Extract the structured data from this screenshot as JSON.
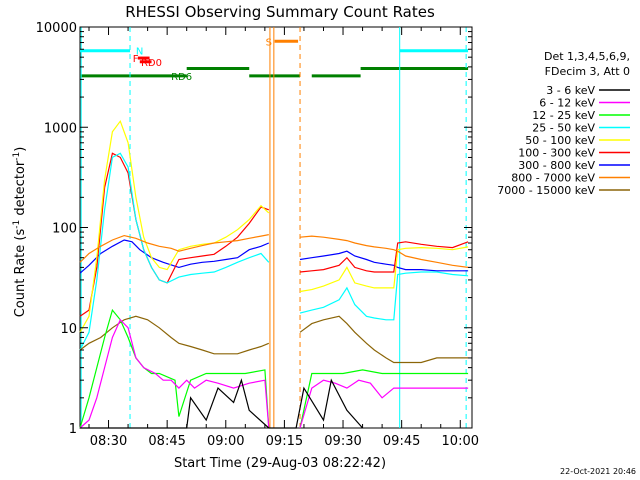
{
  "chart_data": {
    "type": "line",
    "title": "RHESSI Observing Summary Count Rates",
    "xlabel_prefix": "Start Time",
    "start_time": "29-Aug-03 08:22:42",
    "ylabel_main": "Count Rate (s",
    "ylabel_sup1": "-1",
    "ylabel_mid": " detector",
    "ylabel_sup2": "-1",
    "ylabel_end": ")",
    "x_range_min": [
      502.7,
      603
    ],
    "y_scale": "log",
    "ylim": [
      1,
      10000
    ],
    "x_ticks": [
      {
        "label": "08:30",
        "t": 510
      },
      {
        "label": "08:45",
        "t": 525
      },
      {
        "label": "09:00",
        "t": 540
      },
      {
        "label": "09:15",
        "t": 555
      },
      {
        "label": "09:30",
        "t": 570
      },
      {
        "label": "09:45",
        "t": 585
      },
      {
        "label": "10:00",
        "t": 600
      }
    ],
    "y_ticks": [
      {
        "label": "1",
        "v": 1
      },
      {
        "label": "10",
        "v": 10
      },
      {
        "label": "100",
        "v": 100
      },
      {
        "label": "1000",
        "v": 1000
      },
      {
        "label": "10000",
        "v": 10000
      }
    ],
    "legend": {
      "header1": "Det 1,3,4,5,6,9,",
      "header2": "FDecim 3, Att 0"
    },
    "series": [
      {
        "name": "3 - 6 keV",
        "color": "#000000",
        "t": [
          502.7,
          530,
          531,
          535,
          538,
          542,
          544,
          546,
          551,
          558,
          560,
          565,
          567,
          571,
          575
        ],
        "v": [
          1,
          1,
          2,
          1.2,
          2.5,
          1.8,
          3,
          1.5,
          1,
          1,
          2.5,
          1.2,
          3,
          1.5,
          1
        ]
      },
      {
        "name": "6 - 12 keV",
        "color": "#ff00ff",
        "t": [
          502.7,
          505,
          507,
          509,
          511,
          513,
          515,
          517,
          519,
          522,
          524,
          526,
          528,
          530,
          532,
          535,
          538,
          542,
          546,
          550,
          551,
          559,
          562,
          565,
          568,
          571,
          574,
          577,
          580,
          583,
          586,
          590,
          594,
          598,
          602
        ],
        "v": [
          1,
          1.2,
          2,
          4,
          8,
          12,
          10,
          5,
          4,
          3.5,
          3,
          3,
          2.5,
          3,
          2.5,
          3,
          2.8,
          2.5,
          2.8,
          3,
          1,
          1,
          2.5,
          3,
          2.8,
          2.5,
          3,
          2.8,
          2,
          2.5,
          2.5,
          2.5,
          2.5,
          2.5,
          2.5
        ]
      },
      {
        "name": "12 - 25 keV",
        "color": "#00ff00",
        "t": [
          502.7,
          505,
          507,
          509,
          511,
          513,
          515,
          517,
          519,
          521,
          523,
          527,
          528,
          531,
          535,
          540,
          545,
          550,
          551,
          559,
          562,
          565,
          570,
          575,
          580,
          585,
          590,
          595,
          602
        ],
        "v": [
          1,
          2,
          4,
          8,
          15,
          12,
          8,
          5,
          4,
          3.5,
          3.5,
          3,
          1.3,
          3,
          3.5,
          3.5,
          3.5,
          3.8,
          1,
          1,
          3.5,
          3.5,
          3.5,
          3.8,
          3.5,
          3.5,
          3.5,
          3.5,
          3.5
        ]
      },
      {
        "name": "25 - 50 keV",
        "color": "#00ffff",
        "t": [
          502.7,
          505,
          507,
          509,
          511,
          513,
          515,
          517,
          519,
          521,
          523,
          525,
          528,
          531,
          534,
          537,
          540,
          543,
          546,
          549,
          551,
          559,
          562,
          565,
          569,
          571,
          573,
          576,
          578,
          581,
          583,
          584,
          586,
          590,
          594,
          598,
          602
        ],
        "v": [
          6,
          9,
          30,
          150,
          500,
          550,
          400,
          120,
          60,
          40,
          30,
          28,
          32,
          34,
          35,
          36,
          40,
          45,
          50,
          55,
          45,
          14,
          15,
          16,
          19,
          25,
          17,
          13,
          12.5,
          12,
          12,
          34,
          35,
          36,
          36,
          34,
          33
        ]
      },
      {
        "name": "50 - 100 keV",
        "color": "#ffff00",
        "t": [
          502.7,
          505,
          507,
          509,
          511,
          513,
          515,
          517,
          519,
          521,
          523,
          525,
          528,
          531,
          534,
          537,
          540,
          543,
          546,
          549,
          551,
          559,
          562,
          565,
          569,
          571,
          573,
          576,
          578,
          581,
          583,
          584,
          586,
          590,
          594,
          598,
          602
        ],
        "v": [
          9,
          13,
          50,
          300,
          900,
          1150,
          700,
          200,
          80,
          50,
          40,
          38,
          60,
          65,
          68,
          70,
          80,
          95,
          120,
          165,
          140,
          23,
          24,
          26,
          30,
          40,
          28,
          26,
          25,
          25,
          25,
          60,
          62,
          63,
          62,
          60,
          64
        ]
      },
      {
        "name": "100 - 300 keV",
        "color": "#ff0000",
        "t": [
          502.7,
          505,
          507,
          509,
          511,
          513,
          515,
          517,
          519,
          521,
          523,
          525,
          528,
          531,
          534,
          537,
          540,
          543,
          546,
          549,
          551,
          559,
          562,
          565,
          569,
          571,
          573,
          576,
          578,
          581,
          583,
          584,
          586,
          590,
          594,
          598,
          602
        ],
        "v": [
          13,
          15,
          40,
          250,
          550,
          500,
          350,
          120,
          60,
          40,
          30,
          28,
          48,
          50,
          52,
          54,
          65,
          80,
          110,
          160,
          150,
          36,
          37,
          38,
          42,
          50,
          40,
          37,
          36,
          36,
          36,
          70,
          72,
          68,
          65,
          63,
          72
        ]
      },
      {
        "name": "300 - 800 keV",
        "color": "#0000ff",
        "t": [
          502.7,
          505,
          508,
          511,
          514,
          516,
          518,
          521,
          524,
          528,
          531,
          534,
          537,
          540,
          543,
          546,
          549,
          551,
          559,
          562,
          565,
          569,
          571,
          573,
          576,
          578,
          581,
          583,
          584,
          586,
          590,
          594,
          598,
          602
        ],
        "v": [
          35,
          42,
          55,
          65,
          75,
          72,
          60,
          50,
          45,
          40,
          43,
          45,
          46,
          48,
          50,
          60,
          65,
          70,
          48,
          50,
          52,
          55,
          58,
          52,
          48,
          45,
          43,
          42,
          40,
          38,
          38,
          37,
          37,
          37
        ]
      },
      {
        "name": "800 - 7000 keV",
        "color": "#ff8000",
        "t": [
          502.7,
          505,
          508,
          511,
          514,
          517,
          520,
          523,
          526,
          528,
          531,
          534,
          537,
          540,
          543,
          546,
          549,
          551,
          559,
          562,
          565,
          569,
          571,
          573,
          576,
          578,
          581,
          583,
          584,
          586,
          590,
          594,
          598,
          602
        ],
        "v": [
          45,
          55,
          65,
          75,
          83,
          78,
          70,
          65,
          62,
          58,
          62,
          66,
          70,
          72,
          74,
          78,
          82,
          85,
          80,
          82,
          80,
          76,
          74,
          70,
          66,
          64,
          62,
          60,
          58,
          52,
          48,
          45,
          42,
          40
        ]
      },
      {
        "name": "7000 - 15000 keV",
        "color": "#8b6508",
        "t": [
          502.7,
          505,
          508,
          511,
          514,
          517,
          520,
          523,
          526,
          528,
          531,
          534,
          537,
          540,
          543,
          546,
          549,
          551,
          559,
          562,
          565,
          569,
          571,
          573,
          576,
          578,
          581,
          583,
          586,
          590,
          594,
          598,
          602
        ],
        "v": [
          6,
          7,
          8,
          10,
          12,
          13,
          12,
          10,
          8,
          7,
          6.5,
          6,
          5.5,
          5.5,
          5.5,
          6,
          6.5,
          7,
          9,
          11,
          12,
          13,
          11,
          9,
          7,
          6,
          5,
          4.5,
          4.5,
          4.5,
          5,
          5,
          5
        ]
      }
    ],
    "flag_bars": [
      {
        "label": "N",
        "color": "#00ffff",
        "v": 5800,
        "segments": [
          [
            502.7,
            515.5
          ],
          [
            584.5,
            602
          ]
        ],
        "label_t": 517
      },
      {
        "label": "F",
        "color": "#ff0000",
        "v": 4900,
        "segments": [
          [
            517.5,
            520.5
          ]
        ],
        "label_t": 516.2
      },
      {
        "label": "RD0",
        "color": "#ff0000",
        "v": 4500,
        "segments": [
          [
            518,
            521
          ]
        ],
        "label_t": 518.3
      },
      {
        "label": "RD6",
        "color": "#008000",
        "v": 3250,
        "segments": [
          [
            502.7,
            530
          ],
          [
            546,
            559
          ],
          [
            562,
            574.5
          ]
        ],
        "label_t": 526
      },
      {
        "label": "S",
        "color": "#ff8000",
        "v": 7200,
        "segments": [
          [
            552.5,
            558.5
          ]
        ],
        "label_t": 550.2
      },
      {
        "label": "",
        "color": "#008000",
        "v": 3850,
        "segments": [
          [
            530,
            546
          ],
          [
            574.5,
            602
          ]
        ],
        "label_t": 0
      }
    ],
    "vlines": [
      {
        "t": 503,
        "color": "#00ffff",
        "dash": false
      },
      {
        "t": 515.5,
        "color": "#00ffff",
        "dash": true
      },
      {
        "t": 584.5,
        "color": "#00ffff",
        "dash": false
      },
      {
        "t": 601.5,
        "color": "#00ffff",
        "dash": true
      },
      {
        "t": 551.3,
        "color": "#ff8000",
        "dash": false
      },
      {
        "t": 552.3,
        "color": "#ff8000",
        "dash": false
      },
      {
        "t": 559,
        "color": "#ff8000",
        "dash": true
      }
    ],
    "timestamp": "22-Oct-2021 20:46"
  }
}
